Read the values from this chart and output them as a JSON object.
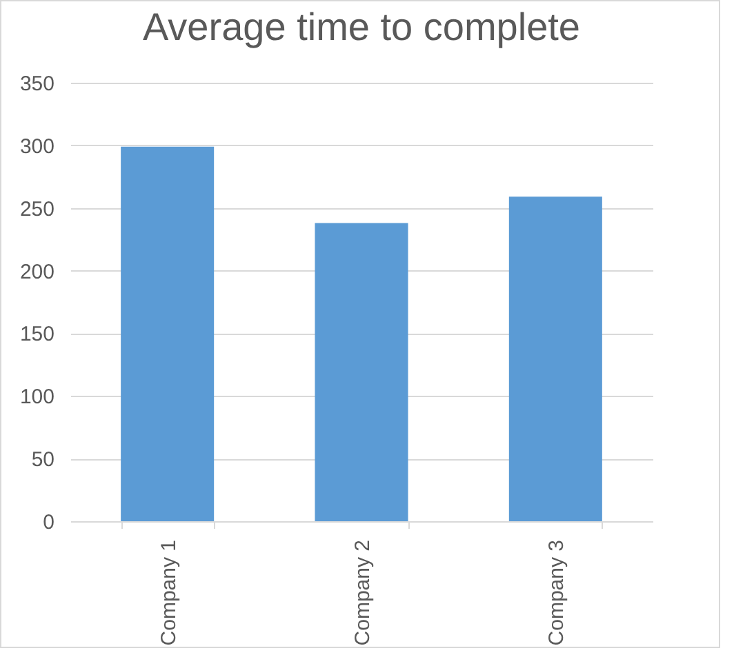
{
  "chart_data": {
    "type": "bar",
    "title": "Average time to complete",
    "categories": [
      "Company 1",
      "Company 2",
      "Company 3"
    ],
    "values": [
      299,
      238,
      259
    ],
    "color": "#5b9bd5",
    "ylim": [
      0,
      350
    ],
    "yticks": [
      0,
      50,
      100,
      150,
      200,
      250,
      300,
      350
    ],
    "grid": "y"
  }
}
